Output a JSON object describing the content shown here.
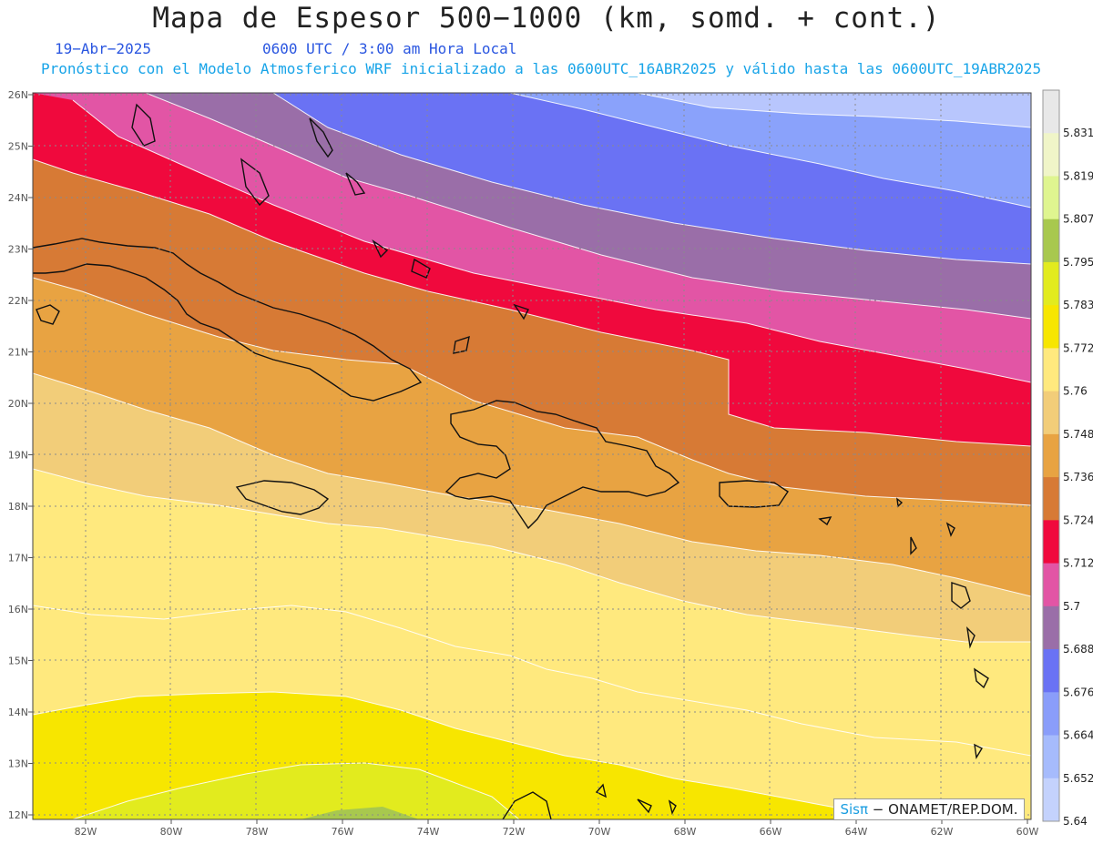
{
  "header": {
    "title": "Mapa de Espesor 500−1000 (km, somd. + cont.)",
    "date": "19−Abr−2025",
    "time": "0600 UTC / 3:00 am Hora Local",
    "forecast": "Pronóstico con el Modelo Atmosferico WRF inicializado a las 0600UTC_16ABR2025 y válido hasta las  0600UTC_19ABR2025"
  },
  "map": {
    "lon_labels": [
      "82W",
      "80W",
      "78W",
      "76W",
      "74W",
      "72W",
      "70W",
      "68W",
      "66W",
      "64W",
      "62W",
      "60W"
    ],
    "lat_labels": [
      "26N",
      "25N",
      "24N",
      "23N",
      "22N",
      "21N",
      "20N",
      "19N",
      "18N",
      "17N",
      "16N",
      "15N",
      "14N",
      "13N",
      "12N"
    ],
    "lon_range": [
      -83.2,
      -59.9
    ],
    "lat_range": [
      11.85,
      26.1
    ],
    "grid": true
  },
  "colorbar": {
    "labels": [
      "5.831",
      "5.819",
      "5.807",
      "5.795",
      "5.783",
      "5.772",
      "5.76",
      "5.748",
      "5.736",
      "5.724",
      "5.712",
      "5.7",
      "5.688",
      "5.676",
      "5.664",
      "5.652",
      "5.64"
    ],
    "colors": [
      "#e8e8e8",
      "#f0f5c8",
      "#dff590",
      "#a8c84e",
      "#e2eb1e",
      "#f7e600",
      "#ffe97e",
      "#f2cd79",
      "#e8a342",
      "#d77a35",
      "#f0093d",
      "#e255a5",
      "#9a6ea8",
      "#6a72f4",
      "#8a9dfa",
      "#a6bbfc",
      "#c4d2fd"
    ]
  },
  "credit": {
    "logo": "Sisπ",
    "text": "− ONAMET/REP.DOM."
  }
}
